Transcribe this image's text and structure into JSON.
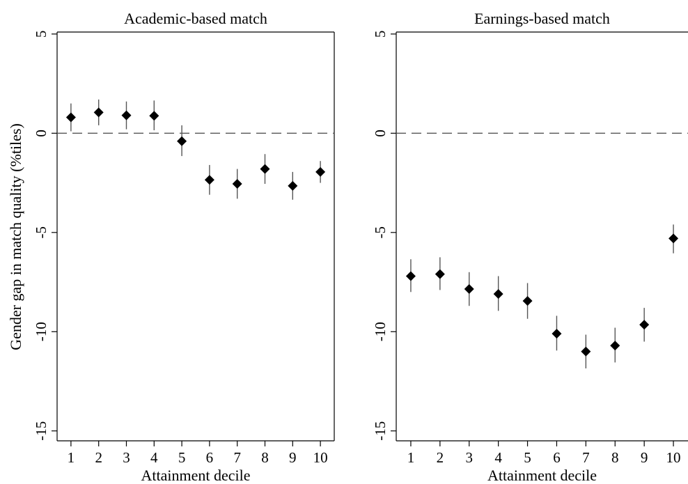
{
  "ylabel": "Gender gap in match quality (%tiles)",
  "colors": {
    "marker": "#000000",
    "ci": "#555555",
    "frame": "#000000",
    "ref_line": "#555555"
  },
  "chart_data": [
    {
      "type": "scatter",
      "title": "Academic-based match",
      "xlabel": "Attainment decile",
      "x_ticks": [
        "1",
        "2",
        "3",
        "4",
        "5",
        "6",
        "7",
        "8",
        "9",
        "10"
      ],
      "y_ticks": [
        "5",
        "0",
        "-5",
        "-10",
        "-15"
      ],
      "y_tick_values": [
        5,
        0,
        -5,
        -10,
        -15
      ],
      "ylim": [
        -15.5,
        5.1
      ],
      "xlim": [
        0.5,
        10.5
      ],
      "reference_line": 0,
      "grid": false,
      "points": [
        {
          "x": 1,
          "y": 0.8,
          "lo": 0.1,
          "hi": 1.5
        },
        {
          "x": 2,
          "y": 1.05,
          "lo": 0.4,
          "hi": 1.7
        },
        {
          "x": 3,
          "y": 0.9,
          "lo": 0.2,
          "hi": 1.6
        },
        {
          "x": 4,
          "y": 0.88,
          "lo": 0.15,
          "hi": 1.65
        },
        {
          "x": 5,
          "y": -0.4,
          "lo": -1.15,
          "hi": 0.4
        },
        {
          "x": 6,
          "y": -2.35,
          "lo": -3.1,
          "hi": -1.6
        },
        {
          "x": 7,
          "y": -2.55,
          "lo": -3.3,
          "hi": -1.8
        },
        {
          "x": 8,
          "y": -1.8,
          "lo": -2.55,
          "hi": -1.05
        },
        {
          "x": 9,
          "y": -2.65,
          "lo": -3.35,
          "hi": -1.95
        },
        {
          "x": 10,
          "y": -1.95,
          "lo": -2.5,
          "hi": -1.4
        }
      ]
    },
    {
      "type": "scatter",
      "title": "Earnings-based match",
      "xlabel": "Attainment decile",
      "x_ticks": [
        "1",
        "2",
        "3",
        "4",
        "5",
        "6",
        "7",
        "8",
        "9",
        "10"
      ],
      "y_ticks": [
        "5",
        "0",
        "-5",
        "-10",
        "-15"
      ],
      "y_tick_values": [
        5,
        0,
        -5,
        -10,
        -15
      ],
      "ylim": [
        -15.5,
        5.1
      ],
      "xlim": [
        0.5,
        10.5
      ],
      "reference_line": 0,
      "grid": false,
      "points": [
        {
          "x": 1,
          "y": -7.2,
          "lo": -8.0,
          "hi": -6.35
        },
        {
          "x": 2,
          "y": -7.1,
          "lo": -7.9,
          "hi": -6.25
        },
        {
          "x": 3,
          "y": -7.85,
          "lo": -8.7,
          "hi": -7.0
        },
        {
          "x": 4,
          "y": -8.1,
          "lo": -8.95,
          "hi": -7.2
        },
        {
          "x": 5,
          "y": -8.45,
          "lo": -9.35,
          "hi": -7.55
        },
        {
          "x": 6,
          "y": -10.1,
          "lo": -10.95,
          "hi": -9.2
        },
        {
          "x": 7,
          "y": -11.0,
          "lo": -11.85,
          "hi": -10.15
        },
        {
          "x": 8,
          "y": -10.7,
          "lo": -11.55,
          "hi": -9.8
        },
        {
          "x": 9,
          "y": -9.65,
          "lo": -10.5,
          "hi": -8.8
        },
        {
          "x": 10,
          "y": -5.3,
          "lo": -6.05,
          "hi": -4.6
        }
      ]
    }
  ]
}
